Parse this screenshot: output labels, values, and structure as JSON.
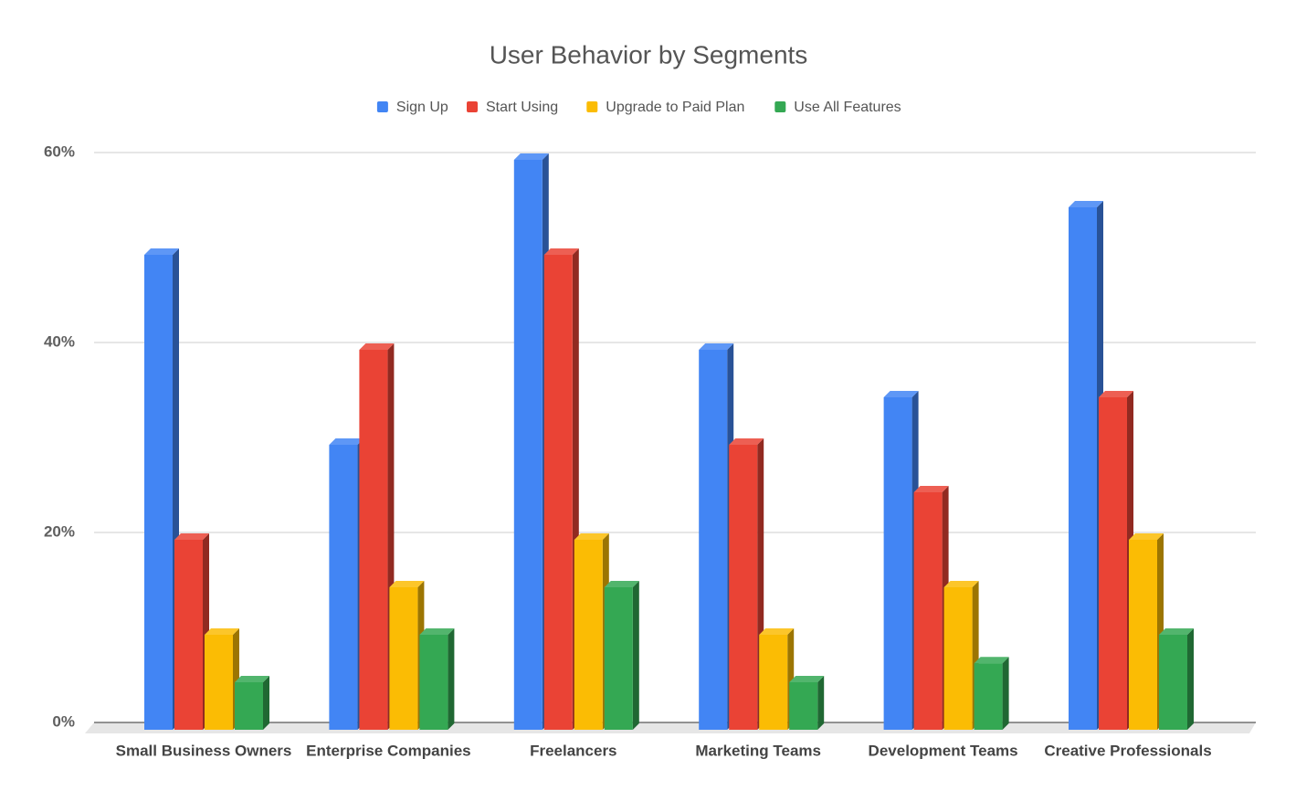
{
  "chart_data": {
    "type": "bar",
    "title": "User Behavior by Segments",
    "categories": [
      "Small Business Owners",
      "Enterprise Companies",
      "Freelancers",
      "Marketing Teams",
      "Development Teams",
      "Creative Professionals"
    ],
    "series": [
      {
        "name": "Sign Up",
        "color": "#4285f4",
        "values": [
          50,
          30,
          60,
          40,
          35,
          55
        ]
      },
      {
        "name": "Start Using",
        "color": "#ea4335",
        "values": [
          20,
          40,
          50,
          30,
          25,
          35
        ]
      },
      {
        "name": "Upgrade to Paid Plan",
        "color": "#fbbc04",
        "values": [
          10,
          15,
          20,
          10,
          15,
          20
        ]
      },
      {
        "name": "Use All Features",
        "color": "#34a853",
        "values": [
          5,
          10,
          15,
          5,
          7,
          10
        ]
      }
    ],
    "ylim": [
      0,
      60
    ],
    "yticks": [
      {
        "value": 0,
        "label": "0%"
      },
      {
        "value": 20,
        "label": "20%"
      },
      {
        "value": 40,
        "label": "40%"
      },
      {
        "value": 60,
        "label": "60%"
      }
    ],
    "grid": true,
    "legend": "top"
  }
}
